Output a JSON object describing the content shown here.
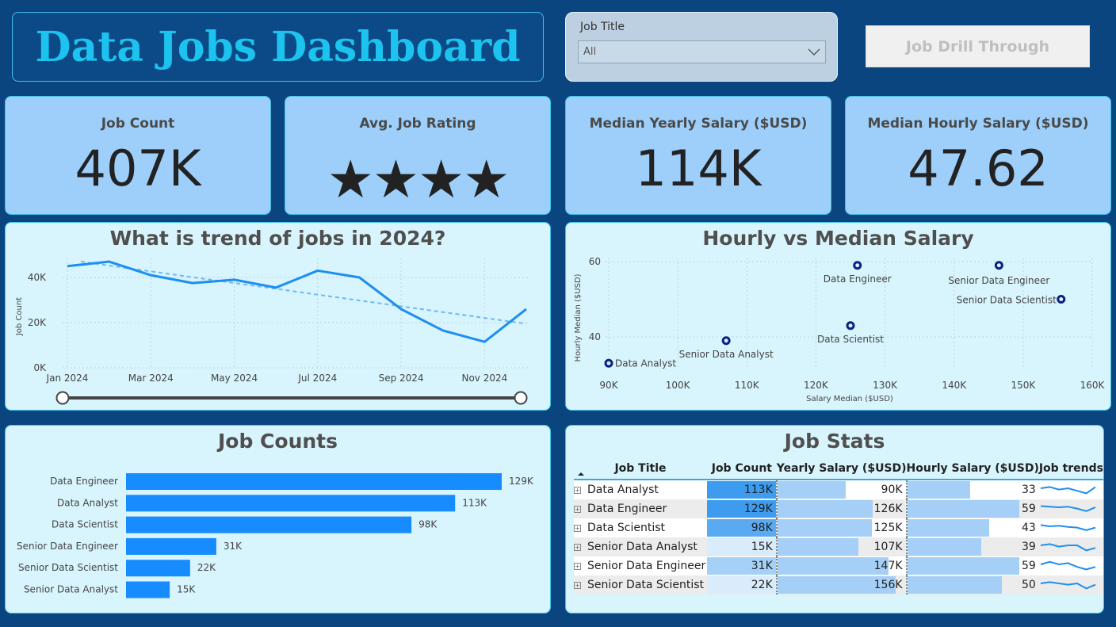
{
  "header": {
    "title": "Data Jobs Dashboard"
  },
  "slicer": {
    "label": "Job Title",
    "value": "All"
  },
  "drill_button": {
    "label": "Job Drill Through"
  },
  "cards": {
    "job_count": {
      "title": "Job Count",
      "value": "407K"
    },
    "avg_rating": {
      "title": "Avg. Job Rating",
      "stars": "★★★★",
      "rating": 4
    },
    "median_yearly": {
      "title": "Median Yearly Salary ($USD)",
      "value": "114K"
    },
    "median_hourly": {
      "title": "Median Hourly Salary ($USD)",
      "value": "47.62"
    }
  },
  "trend": {
    "title": "What is trend of jobs in 2024?",
    "ylabel": "Job Count",
    "yticks": [
      "0K",
      "20K",
      "40K"
    ],
    "xticks": [
      "Jan 2024",
      "Mar 2024",
      "May 2024",
      "Jul 2024",
      "Sep 2024",
      "Nov 2024"
    ]
  },
  "scatter": {
    "title": "Hourly vs Median Salary",
    "xlabel": "Salary Median ($USD)",
    "ylabel": "Hourly Median ($USD)",
    "xticks": [
      "90K",
      "100K",
      "110K",
      "120K",
      "130K",
      "140K",
      "150K",
      "160K"
    ],
    "yticks": [
      "40",
      "60"
    ]
  },
  "bars": {
    "title": "Job Counts"
  },
  "stats": {
    "title": "Job Stats",
    "headers": [
      "Job Title",
      "Job Count",
      "Yearly Salary ($USD)",
      "Hourly Salary ($USD)",
      "Job trends"
    ],
    "rows": [
      {
        "title": "Data Analyst",
        "count": "113K",
        "yearly": "90K",
        "hourly": "33"
      },
      {
        "title": "Data Engineer",
        "count": "129K",
        "yearly": "126K",
        "hourly": "59"
      },
      {
        "title": "Data Scientist",
        "count": "98K",
        "yearly": "125K",
        "hourly": "43"
      },
      {
        "title": "Senior Data Analyst",
        "count": "15K",
        "yearly": "107K",
        "hourly": "39"
      },
      {
        "title": "Senior Data Engineer",
        "count": "31K",
        "yearly": "147K",
        "hourly": "59"
      },
      {
        "title": "Senior Data Scientist",
        "count": "22K",
        "yearly": "156K",
        "hourly": "50"
      }
    ]
  },
  "chart_data": [
    {
      "type": "line",
      "title": "What is trend of jobs in 2024?",
      "ylabel": "Job Count",
      "x": [
        "Jan 2024",
        "Feb 2024",
        "Mar 2024",
        "Apr 2024",
        "May 2024",
        "Jun 2024",
        "Jul 2024",
        "Aug 2024",
        "Sep 2024",
        "Oct 2024",
        "Nov 2024",
        "Dec 2024"
      ],
      "values": [
        45000,
        47000,
        41000,
        37500,
        39000,
        35500,
        43000,
        40000,
        26000,
        16500,
        11500,
        26000
      ],
      "trendline": {
        "start": 47000,
        "end": 19500
      },
      "ylim": [
        0,
        50000
      ],
      "colors": {
        "line": "#1e8ef0",
        "trend": "#6db8f7"
      }
    },
    {
      "type": "scatter",
      "title": "Hourly vs Median Salary",
      "xlabel": "Salary Median ($USD)",
      "ylabel": "Hourly Median ($USD)",
      "xlim": [
        90000,
        160000
      ],
      "ylim": [
        33,
        60
      ],
      "points": [
        {
          "label": "Data Analyst",
          "x": 90000,
          "y": 33
        },
        {
          "label": "Data Engineer",
          "x": 126000,
          "y": 59
        },
        {
          "label": "Data Scientist",
          "x": 125000,
          "y": 43
        },
        {
          "label": "Senior Data Analyst",
          "x": 107000,
          "y": 39
        },
        {
          "label": "Senior Data Engineer",
          "x": 146500,
          "y": 59
        },
        {
          "label": "Senior Data Scientist",
          "x": 155500,
          "y": 50
        }
      ],
      "color": "#0b2180"
    },
    {
      "type": "bar",
      "title": "Job Counts",
      "orientation": "horizontal",
      "categories": [
        "Data Engineer",
        "Data Analyst",
        "Data Scientist",
        "Senior Data Engineer",
        "Senior Data Scientist",
        "Senior Data Analyst"
      ],
      "values": [
        129000,
        113000,
        98000,
        31000,
        22000,
        15000
      ],
      "labels": [
        "129K",
        "113K",
        "98K",
        "31K",
        "22K",
        "15K"
      ],
      "color": "#168cff"
    }
  ]
}
